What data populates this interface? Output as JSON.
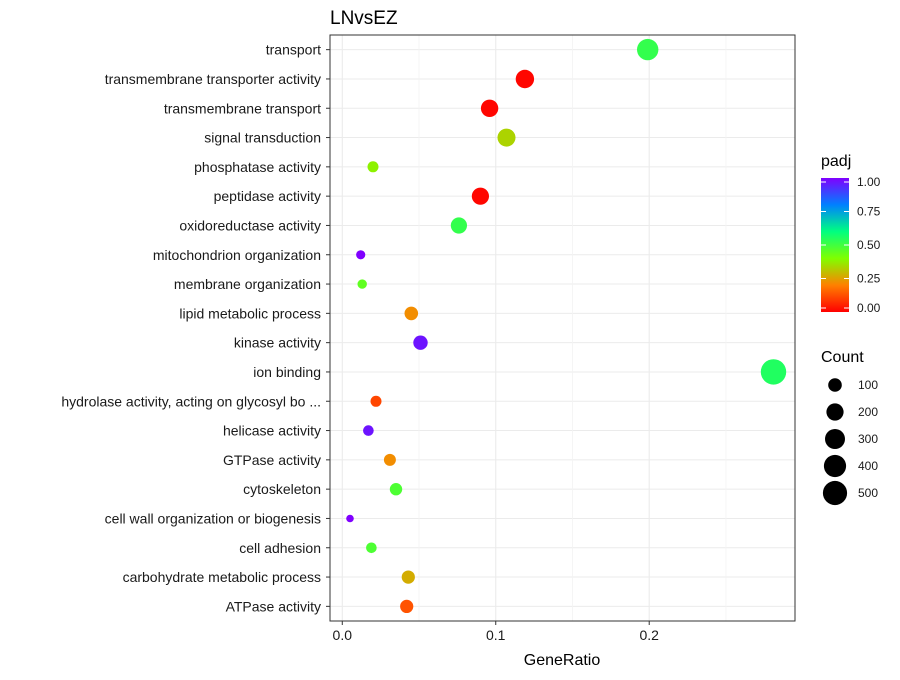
{
  "chart_data": {
    "type": "scatter",
    "title": "LNvsEZ",
    "xlabel": "GeneRatio",
    "ylabel": "",
    "xlim": [
      -0.008,
      0.295
    ],
    "x_ticks": [
      {
        "value": 0.0,
        "label": "0.0"
      },
      {
        "value": 0.1,
        "label": "0.1"
      },
      {
        "value": 0.2,
        "label": "0.2"
      }
    ],
    "grid": true,
    "categories": [
      "transport",
      "transmembrane transporter activity",
      "transmembrane transport",
      "signal transduction",
      "phosphatase activity",
      "peptidase activity",
      "oxidoreductase activity",
      "mitochondrion organization",
      "membrane organization",
      "lipid metabolic process",
      "kinase activity",
      "ion binding",
      "hydrolase activity, acting on glycosyl bo ...",
      "helicase activity",
      "GTPase activity",
      "cytoskeleton",
      "cell wall organization or biogenesis",
      "cell adhesion",
      "carbohydrate metabolic process",
      "ATPase activity"
    ],
    "points": [
      {
        "category": "transport",
        "x": 0.199,
        "count": 360,
        "padj": 0.52
      },
      {
        "category": "transmembrane transporter activity",
        "x": 0.119,
        "count": 240,
        "padj": 0.01
      },
      {
        "category": "transmembrane transport",
        "x": 0.096,
        "count": 210,
        "padj": 0.01
      },
      {
        "category": "signal transduction",
        "x": 0.107,
        "count": 230,
        "padj": 0.33
      },
      {
        "category": "phosphatase activity",
        "x": 0.02,
        "count": 50,
        "padj": 0.38
      },
      {
        "category": "peptidase activity",
        "x": 0.09,
        "count": 200,
        "padj": 0.01
      },
      {
        "category": "oxidoreductase activity",
        "x": 0.076,
        "count": 170,
        "padj": 0.52
      },
      {
        "category": "mitochondrion organization",
        "x": 0.012,
        "count": 25,
        "padj": 1.0
      },
      {
        "category": "membrane organization",
        "x": 0.013,
        "count": 28,
        "padj": 0.45
      },
      {
        "category": "lipid metabolic process",
        "x": 0.045,
        "count": 100,
        "padj": 0.22
      },
      {
        "category": "kinase activity",
        "x": 0.051,
        "count": 120,
        "padj": 0.97
      },
      {
        "category": "ion binding",
        "x": 0.281,
        "count": 560,
        "padj": 0.55
      },
      {
        "category": "hydrolase activity, acting on glycosyl bo ...",
        "x": 0.022,
        "count": 50,
        "padj": 0.11
      },
      {
        "category": "helicase activity",
        "x": 0.017,
        "count": 45,
        "padj": 0.97
      },
      {
        "category": "GTPase activity",
        "x": 0.031,
        "count": 70,
        "padj": 0.22
      },
      {
        "category": "cytoskeleton",
        "x": 0.035,
        "count": 75,
        "padj": 0.48
      },
      {
        "category": "cell wall organization or biogenesis",
        "x": 0.005,
        "count": 10,
        "padj": 1.0
      },
      {
        "category": "cell adhesion",
        "x": 0.019,
        "count": 45,
        "padj": 0.48
      },
      {
        "category": "carbohydrate metabolic process",
        "x": 0.043,
        "count": 95,
        "padj": 0.27
      },
      {
        "category": "ATPase activity",
        "x": 0.042,
        "count": 95,
        "padj": 0.13
      }
    ],
    "legend": {
      "color_title": "padj",
      "color_ticks": [
        "1.00",
        "0.75",
        "0.50",
        "0.25",
        "0.00"
      ],
      "color_values": [
        1.0,
        0.75,
        0.5,
        0.25,
        0.0
      ],
      "colorscale": [
        "#ff0000",
        "#ff8000",
        "#80ff00",
        "#00ff80",
        "#0080ff",
        "#8000ff"
      ],
      "size_title": "Count",
      "size_entries": [
        {
          "label": "100",
          "value": 100
        },
        {
          "label": "200",
          "value": 200
        },
        {
          "label": "300",
          "value": 300
        },
        {
          "label": "400",
          "value": 400
        },
        {
          "label": "500",
          "value": 500
        }
      ],
      "placement": "right"
    }
  }
}
